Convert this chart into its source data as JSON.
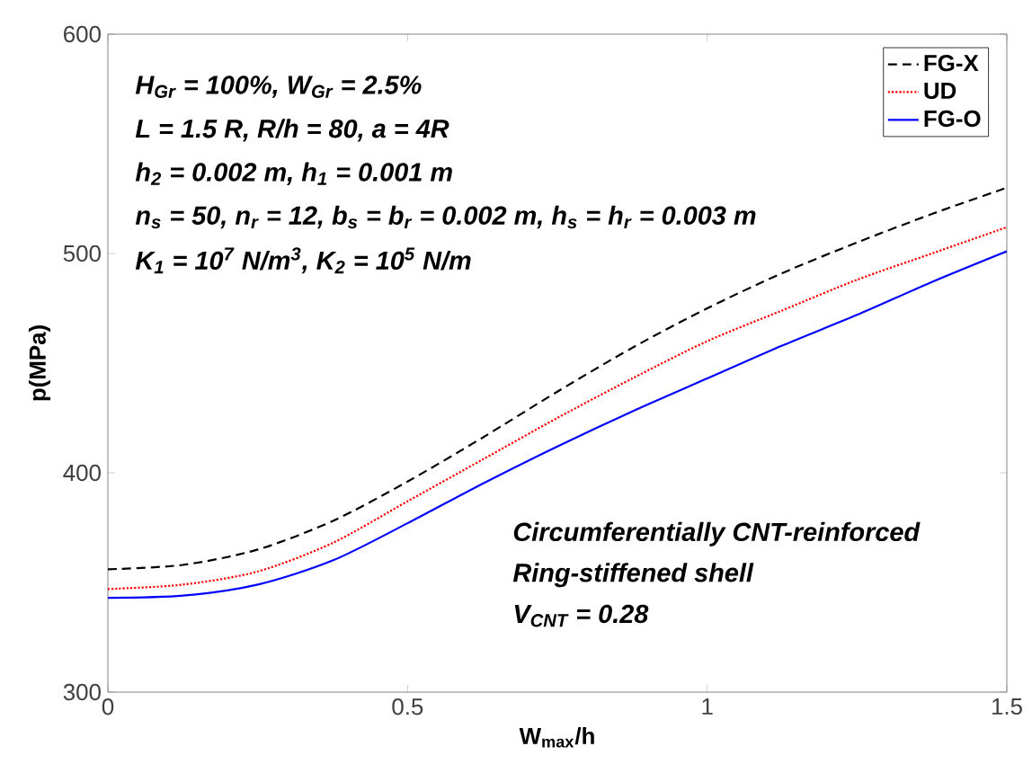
{
  "chart_data": {
    "type": "line",
    "xlabel": "**W$_{max}$/h**",
    "ylabel": "p(MPa)",
    "xlim": [
      0,
      1.5
    ],
    "ylim": [
      300,
      600
    ],
    "xticks": [
      0,
      0.5,
      1,
      1.5
    ],
    "yticks": [
      300,
      400,
      500,
      600
    ],
    "legend": "top right",
    "x": [
      0,
      0.125,
      0.25,
      0.375,
      0.5,
      0.625,
      0.75,
      0.875,
      1,
      1.125,
      1.25,
      1.375,
      1.5
    ],
    "series": [
      {
        "name": "FG-X",
        "color": "#000000",
        "line_style": "dashed",
        "values": [
          356,
          358,
          365,
          378,
          396,
          416,
          437,
          457,
          475,
          491,
          505,
          518,
          530
        ]
      },
      {
        "name": "UD",
        "color": "#ff0000",
        "line_style": "dotted",
        "values": [
          347,
          349,
          355,
          368,
          387,
          406,
          425,
          443,
          460,
          474,
          488,
          500,
          512
        ]
      },
      {
        "name": "FG-O",
        "color": "#0000ff",
        "line_style": "solid",
        "values": [
          343,
          344,
          349,
          360,
          377,
          395,
          412,
          428,
          443,
          458,
          472,
          487,
          501
        ]
      }
    ],
    "annotations": [
      "H$_{Gr}$ = 100%, W$_{Gr}$ = 2.5%",
      "L = 1.5 R, R/h = 80, a = 4R",
      "h$_{2}$ = 0.002 m, h$_{1}$ = 0.001 m",
      "n$_{s}$ = 50, n$_{r}$ = 12, b$_{s}$ = b$_{r}$ = 0.002 m, h$_{s}$ = h$_{r}$ = 0.003 m",
      "K$_{1}$ = 10$^{7}$ N/m$^{3}$, K$_{2}$ = 10$^{5}$ N/m",
      "Circumferentially CNT-reinforced",
      "Ring-stiffened shell",
      "V$_{CNT}$ = 0.28"
    ]
  }
}
